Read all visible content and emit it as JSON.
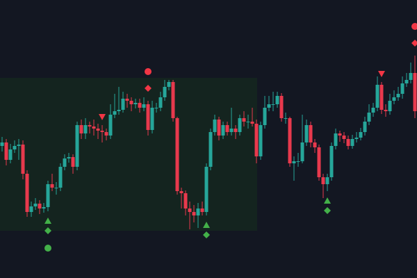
{
  "chart_data": {
    "type": "candlestick",
    "up_color": "#26a69a",
    "down_color": "#e8394d",
    "ylim": [
      0,
      400
    ],
    "open": [
      190,
      195,
      170,
      185,
      190,
      192,
      150,
      95,
      103,
      107,
      100,
      102,
      135,
      130,
      130,
      160,
      172,
      174,
      160,
      220,
      208,
      220,
      218,
      215,
      212,
      210,
      205,
      235,
      240,
      242,
      258,
      255,
      250,
      252,
      245,
      250,
      213,
      245,
      245,
      260,
      275,
      282,
      230,
      125,
      122,
      100,
      95,
      90,
      100,
      95,
      160,
      210,
      228,
      205,
      220,
      210,
      215,
      210,
      230,
      225,
      225,
      222,
      175,
      220,
      245,
      250,
      250,
      262,
      230,
      230,
      165,
      168,
      168,
      195,
      220,
      195,
      188,
      145,
      135,
      145,
      190,
      208,
      205,
      200,
      190,
      200,
      202,
      210,
      225,
      238,
      245,
      278,
      242,
      240,
      255,
      260,
      265,
      280,
      285,
      295
    ],
    "high": [
      203,
      200,
      193,
      198,
      200,
      198,
      155,
      110,
      115,
      112,
      108,
      140,
      150,
      138,
      165,
      178,
      180,
      178,
      225,
      228,
      230,
      225,
      228,
      222,
      220,
      215,
      250,
      265,
      275,
      268,
      265,
      260,
      258,
      258,
      260,
      255,
      255,
      252,
      268,
      285,
      285,
      285,
      232,
      130,
      126,
      110,
      105,
      108,
      110,
      165,
      215,
      235,
      232,
      225,
      225,
      245,
      220,
      235,
      240,
      235,
      245,
      228,
      225,
      262,
      262,
      268,
      268,
      266,
      238,
      232,
      175,
      180,
      235,
      228,
      225,
      200,
      192,
      150,
      150,
      195,
      215,
      212,
      210,
      205,
      206,
      210,
      216,
      232,
      250,
      252,
      290,
      282,
      250,
      265,
      270,
      275,
      290,
      295,
      310,
      320
    ],
    "low": [
      182,
      162,
      165,
      180,
      170,
      142,
      88,
      88,
      98,
      92,
      94,
      96,
      125,
      120,
      125,
      155,
      166,
      150,
      155,
      200,
      200,
      208,
      205,
      200,
      195,
      198,
      200,
      230,
      235,
      238,
      245,
      240,
      244,
      238,
      240,
      205,
      208,
      238,
      240,
      255,
      270,
      225,
      120,
      100,
      90,
      70,
      80,
      72,
      90,
      90,
      155,
      205,
      198,
      200,
      205,
      205,
      200,
      205,
      218,
      215,
      218,
      165,
      170,
      215,
      240,
      240,
      245,
      225,
      222,
      160,
      140,
      160,
      165,
      190,
      188,
      180,
      140,
      115,
      125,
      140,
      185,
      196,
      194,
      185,
      186,
      195,
      198,
      205,
      220,
      232,
      240,
      236,
      232,
      235,
      250,
      255,
      258,
      275,
      280,
      230
    ],
    "close": [
      195,
      170,
      185,
      190,
      192,
      150,
      95,
      103,
      107,
      100,
      102,
      135,
      130,
      130,
      160,
      172,
      174,
      160,
      220,
      208,
      220,
      218,
      215,
      212,
      210,
      205,
      235,
      240,
      242,
      258,
      255,
      250,
      252,
      245,
      250,
      213,
      245,
      245,
      260,
      275,
      282,
      230,
      125,
      122,
      100,
      95,
      90,
      100,
      95,
      160,
      210,
      228,
      205,
      220,
      210,
      215,
      210,
      230,
      225,
      225,
      222,
      175,
      220,
      245,
      250,
      250,
      262,
      230,
      230,
      165,
      168,
      168,
      195,
      220,
      195,
      188,
      145,
      135,
      145,
      190,
      208,
      205,
      200,
      190,
      200,
      202,
      210,
      225,
      238,
      245,
      278,
      242,
      240,
      255,
      260,
      265,
      280,
      285,
      295,
      240
    ],
    "signals": [
      {
        "index": 11,
        "shape": "triangle-up",
        "color": "#43b049"
      },
      {
        "index": 11,
        "shape": "diamond-below",
        "color": "#43b049"
      },
      {
        "index": 11,
        "shape": "circle-below",
        "color": "#43b049"
      },
      {
        "index": 24,
        "shape": "triangle-down",
        "color": "#f23645"
      },
      {
        "index": 35,
        "shape": "diamond-above",
        "color": "#f23645"
      },
      {
        "index": 35,
        "shape": "circle-above",
        "color": "#f23645"
      },
      {
        "index": 49,
        "shape": "triangle-up",
        "color": "#43b049"
      },
      {
        "index": 49,
        "shape": "diamond-below",
        "color": "#43b049"
      },
      {
        "index": 78,
        "shape": "triangle-up",
        "color": "#43b049"
      },
      {
        "index": 78,
        "shape": "diamond-below",
        "color": "#43b049"
      },
      {
        "index": 91,
        "shape": "triangle-down",
        "color": "#f23645"
      },
      {
        "index": 99,
        "shape": "diamond-above",
        "color": "#f23645"
      },
      {
        "index": 99,
        "shape": "circle-above",
        "color": "#f23645"
      }
    ]
  }
}
